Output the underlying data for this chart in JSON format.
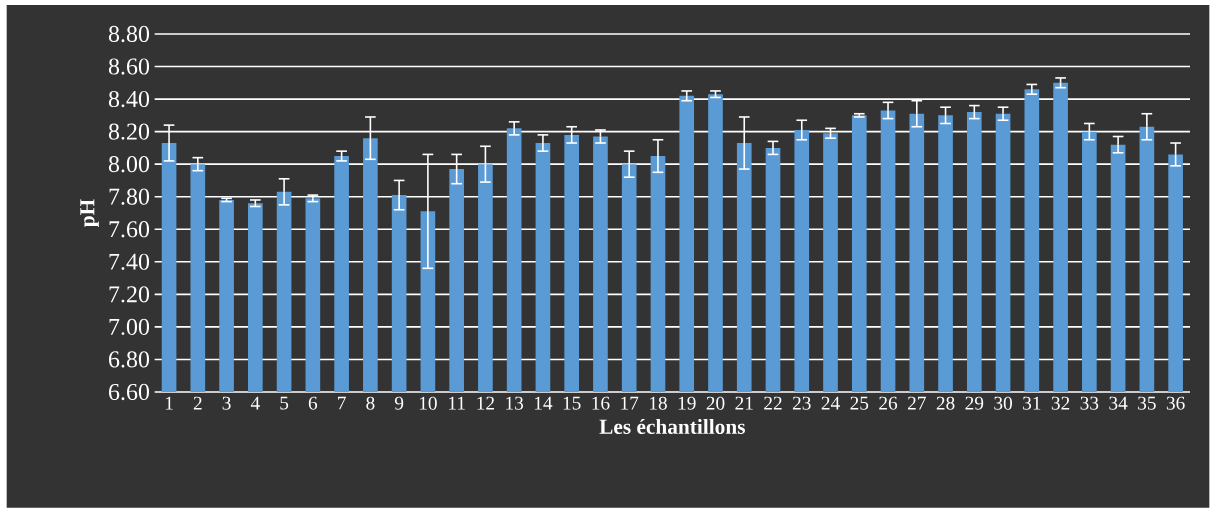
{
  "chart_data": {
    "type": "bar",
    "xlabel": "Les échantillons",
    "ylabel": "pH",
    "categories": [
      "1",
      "2",
      "3",
      "4",
      "5",
      "6",
      "7",
      "8",
      "9",
      "10",
      "11",
      "12",
      "13",
      "14",
      "15",
      "16",
      "17",
      "18",
      "19",
      "20",
      "21",
      "22",
      "23",
      "24",
      "25",
      "26",
      "27",
      "28",
      "29",
      "30",
      "31",
      "32",
      "33",
      "34",
      "35",
      "36"
    ],
    "values": [
      8.13,
      8.0,
      7.78,
      7.76,
      7.83,
      7.79,
      8.05,
      8.16,
      7.81,
      7.71,
      7.97,
      8.0,
      8.22,
      8.13,
      8.18,
      8.17,
      8.0,
      8.05,
      8.42,
      8.43,
      8.13,
      8.1,
      8.21,
      8.19,
      8.3,
      8.33,
      8.31,
      8.3,
      8.32,
      8.31,
      8.46,
      8.5,
      8.2,
      8.12,
      8.23,
      8.06
    ],
    "errors": [
      0.11,
      0.04,
      0.01,
      0.02,
      0.08,
      0.02,
      0.03,
      0.13,
      0.09,
      0.35,
      0.09,
      0.11,
      0.04,
      0.05,
      0.05,
      0.04,
      0.08,
      0.1,
      0.03,
      0.02,
      0.16,
      0.04,
      0.06,
      0.03,
      0.01,
      0.05,
      0.08,
      0.05,
      0.04,
      0.04,
      0.03,
      0.03,
      0.05,
      0.05,
      0.08,
      0.07
    ],
    "color": "#5b9bd5",
    "ylim": [
      6.6,
      8.8
    ],
    "yticks": [
      {
        "value": 6.6,
        "label": "6.60"
      },
      {
        "value": 6.8,
        "label": "6.80"
      },
      {
        "value": 7.0,
        "label": "7.00"
      },
      {
        "value": 7.2,
        "label": "7.20"
      },
      {
        "value": 7.4,
        "label": "7.40"
      },
      {
        "value": 7.6,
        "label": "7.60"
      },
      {
        "value": 7.8,
        "label": "7.80"
      },
      {
        "value": 8.0,
        "label": "8.00"
      },
      {
        "value": 8.2,
        "label": "8.20"
      },
      {
        "value": 8.4,
        "label": "8.40"
      },
      {
        "value": 8.6,
        "label": "8.60"
      },
      {
        "value": 8.8,
        "label": "8.80"
      }
    ],
    "grid": "y"
  }
}
